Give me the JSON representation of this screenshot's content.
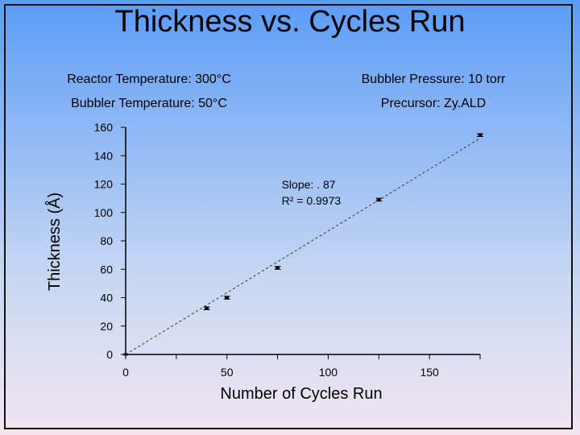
{
  "slide": {
    "title": "Thickness vs. Cycles Run",
    "info_left": [
      "Reactor Temperature: 300°C",
      "Bubbler Temperature: 50°C"
    ],
    "info_right": [
      "Bubbler Pressure: 10 torr",
      "Precursor: Zy.ALD"
    ]
  },
  "chart_data": {
    "type": "scatter",
    "title": "Thickness vs. Cycles Run",
    "xlabel": "Number of Cycles Run",
    "ylabel": "Thickness (Å)",
    "xlim": [
      0,
      175
    ],
    "ylim": [
      0,
      160
    ],
    "xticks": [
      0,
      50,
      100,
      150
    ],
    "yticks": [
      0,
      20,
      40,
      60,
      80,
      100,
      120,
      140,
      160
    ],
    "x": [
      0,
      40,
      50,
      75,
      125,
      175
    ],
    "y": [
      0,
      32.5,
      40,
      61,
      109,
      154.5
    ],
    "error": [
      0,
      1,
      1,
      1,
      1,
      1
    ],
    "trendline": {
      "type": "linear",
      "style": "dashed",
      "x": [
        0,
        175
      ],
      "y": [
        0,
        152.25
      ]
    },
    "annotation": {
      "line1": "Slope: . 87",
      "line2": "R² = 0.9973",
      "at_x": 77,
      "at_y": 117
    },
    "grid": false,
    "legend": "none"
  },
  "colors": {
    "axis": "#000000",
    "marker": "#000000",
    "trendline": "#333333"
  }
}
